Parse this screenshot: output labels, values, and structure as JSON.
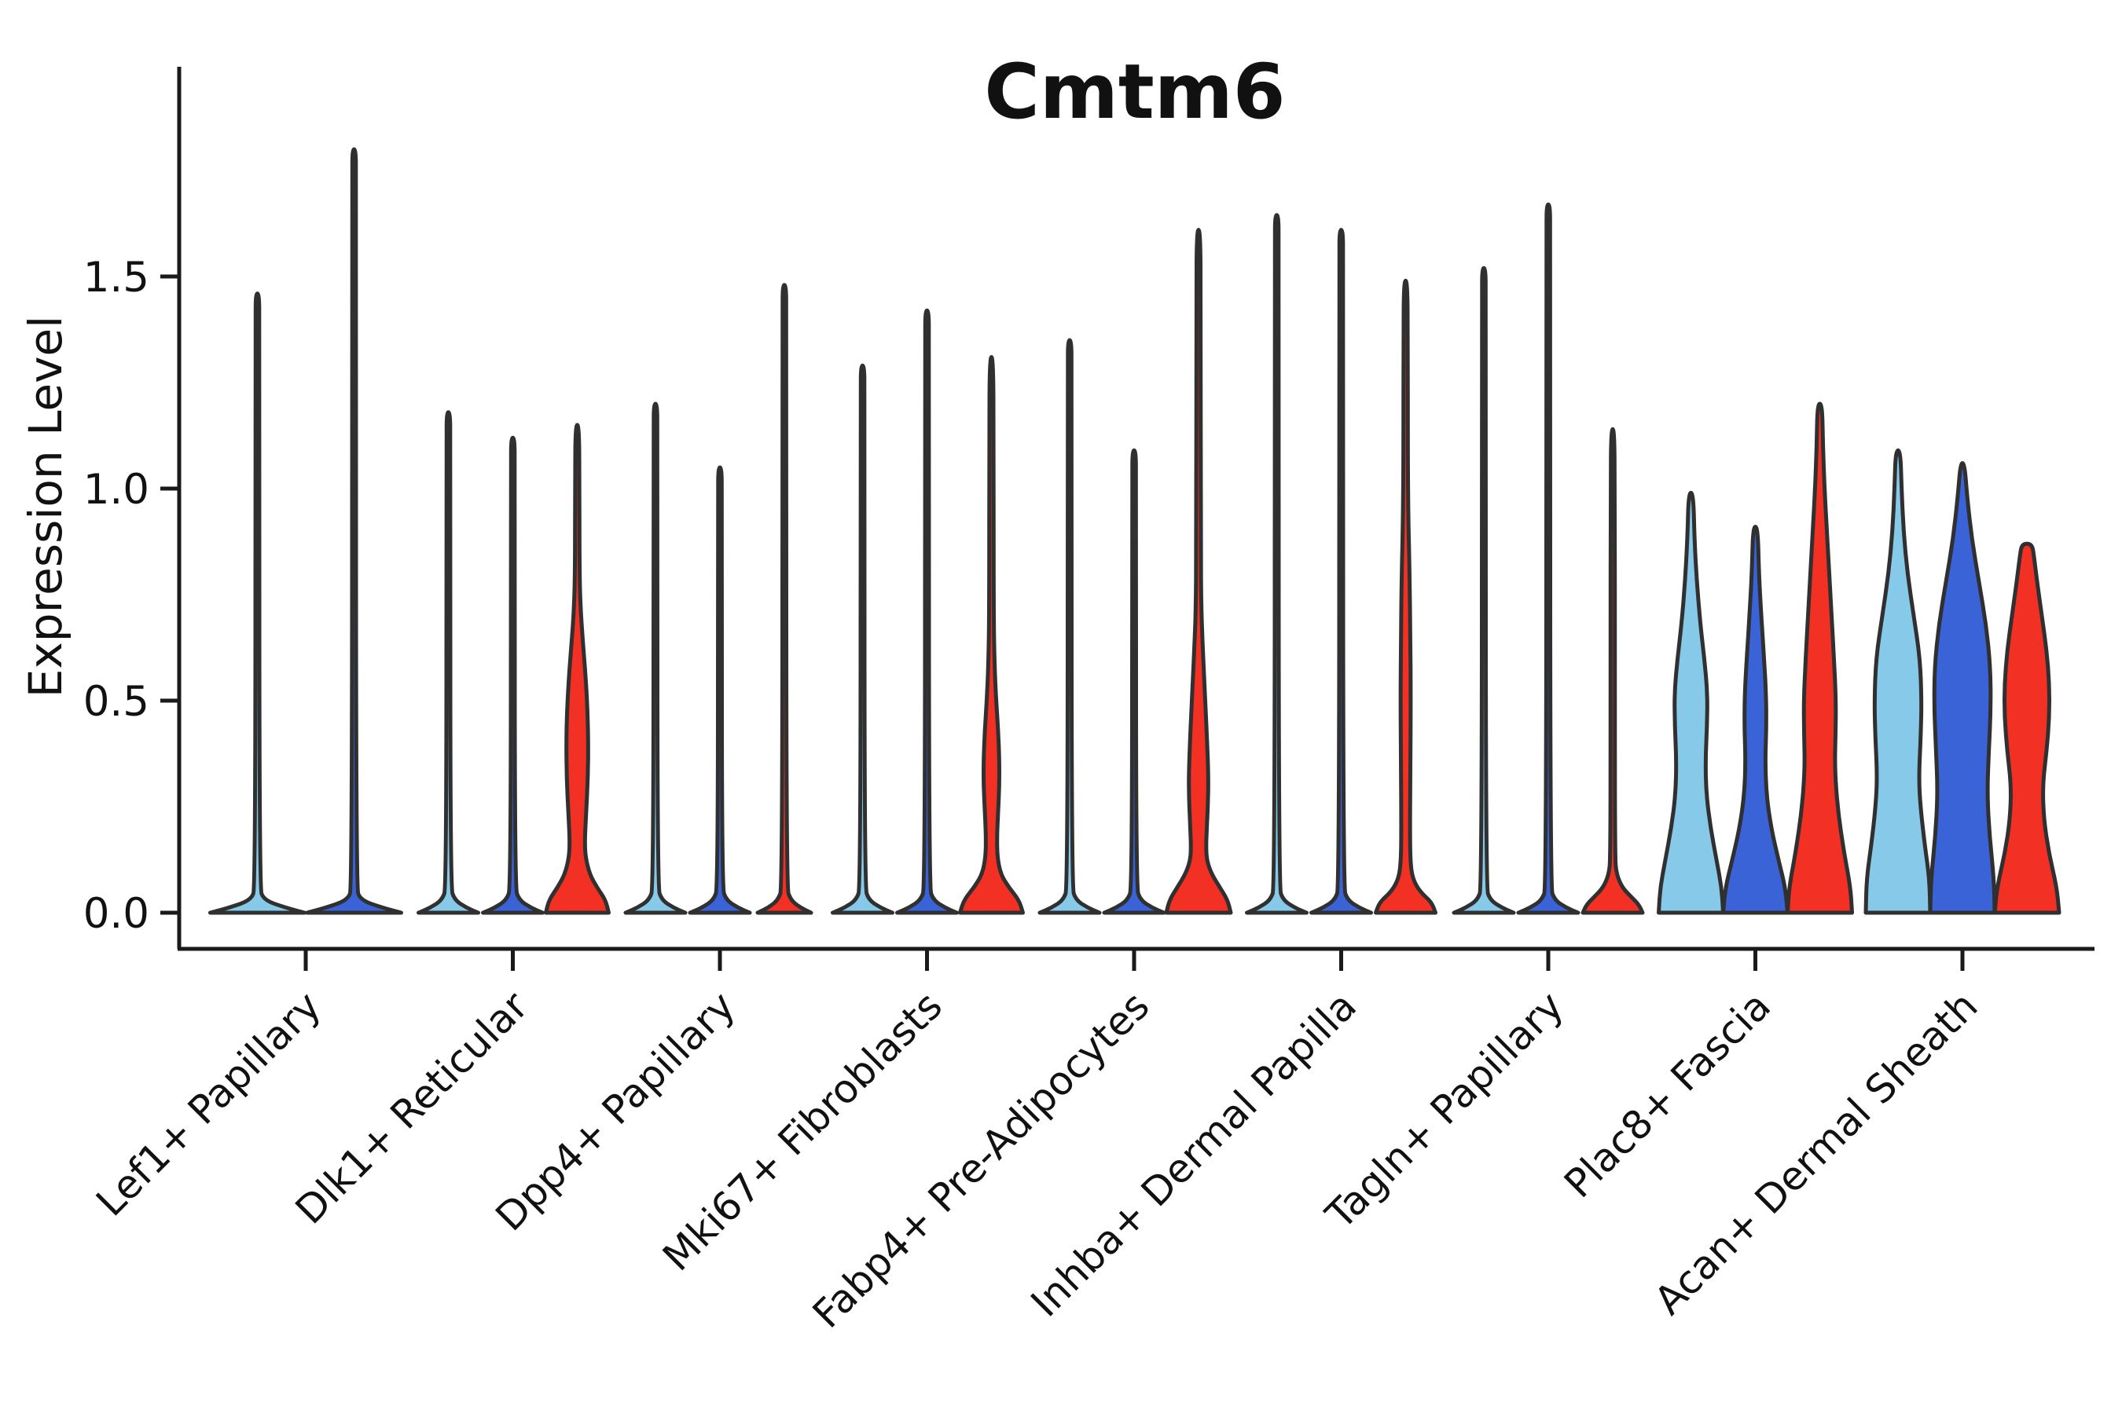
{
  "chart_data": {
    "type": "violin",
    "title": "Cmtm6",
    "ylabel": "Expression Level",
    "xlabel": "",
    "grid": false,
    "legend": "none",
    "yticks": [
      "0.0",
      "0.5",
      "1.0",
      "1.5"
    ],
    "ytick_values": [
      0.0,
      0.5,
      1.0,
      1.5
    ],
    "ylim": [
      -0.085,
      1.995
    ],
    "categories": [
      "Lef1+ Papillary",
      "Dlk1+ Reticular",
      "Dpp4+ Papillary",
      "Mki67+ Fibroblasts",
      "Fabp4+ Pre-Adipocytes",
      "Inhba+ Dermal Papilla",
      "Tagln+ Papillary",
      "Plac8+ Fascia",
      "Acan+ Dermal Sheath"
    ],
    "palette": {
      "lightblue": "#87c9e8",
      "darkblue": "#3a63d8",
      "red": "#f23023",
      "outline": "#303030",
      "axis": "#1a1a1a"
    },
    "groups": [
      {
        "label": "Lef1+ Papillary",
        "violins": [
          {
            "color": "lightblue",
            "offset": -61.5,
            "top": 1.46,
            "shape": "spike",
            "base_halfwidth": 60
          },
          {
            "color": "darkblue",
            "offset": 61.5,
            "top": 1.8,
            "shape": "spike",
            "base_halfwidth": 60
          }
        ]
      },
      {
        "label": "Dlk1+ Reticular",
        "violins": [
          {
            "color": "lightblue",
            "offset": -82,
            "top": 1.18,
            "shape": "spike",
            "base_halfwidth": 38
          },
          {
            "color": "darkblue",
            "offset": 0,
            "top": 1.12,
            "shape": "spike",
            "base_halfwidth": 38
          },
          {
            "color": "red",
            "offset": 82,
            "top": 1.15,
            "shape": "profile",
            "profile": [
              [
                0,
                40
              ],
              [
                0.03,
                36
              ],
              [
                0.06,
                25
              ],
              [
                0.09,
                16
              ],
              [
                0.13,
                10.5
              ],
              [
                0.17,
                9.5
              ],
              [
                0.24,
                11.5
              ],
              [
                0.32,
                13.5
              ],
              [
                0.4,
                14
              ],
              [
                0.48,
                13
              ],
              [
                0.56,
                10.5
              ],
              [
                0.63,
                7.5
              ],
              [
                0.72,
                4
              ],
              [
                0.82,
                2.8
              ],
              [
                1.02,
                2.8
              ],
              [
                1.15,
                2.2
              ]
            ]
          }
        ]
      },
      {
        "label": "Dpp4+ Papillary",
        "violins": [
          {
            "color": "lightblue",
            "offset": -82,
            "top": 1.2,
            "shape": "spike",
            "base_halfwidth": 38
          },
          {
            "color": "darkblue",
            "offset": 0,
            "top": 1.05,
            "shape": "spike",
            "base_halfwidth": 38
          },
          {
            "color": "red",
            "offset": 82,
            "top": 1.48,
            "shape": "spike",
            "base_halfwidth": 34
          }
        ]
      },
      {
        "label": "Mki67+ Fibroblasts",
        "violins": [
          {
            "color": "lightblue",
            "offset": -82,
            "top": 1.29,
            "shape": "spike",
            "base_halfwidth": 38
          },
          {
            "color": "darkblue",
            "offset": 0,
            "top": 1.42,
            "shape": "spike",
            "base_halfwidth": 38
          },
          {
            "color": "red",
            "offset": 82,
            "top": 1.31,
            "shape": "profile",
            "profile": [
              [
                0,
                40
              ],
              [
                0.03,
                35
              ],
              [
                0.06,
                22
              ],
              [
                0.09,
                12
              ],
              [
                0.13,
                7.5
              ],
              [
                0.18,
                7
              ],
              [
                0.24,
                8.5
              ],
              [
                0.3,
                10
              ],
              [
                0.36,
                10
              ],
              [
                0.43,
                8.5
              ],
              [
                0.5,
                6
              ],
              [
                0.58,
                4
              ],
              [
                0.7,
                2.8
              ],
              [
                1.12,
                2.8
              ],
              [
                1.31,
                2.2
              ]
            ]
          }
        ]
      },
      {
        "label": "Fabp4+ Pre-Adipocytes",
        "violins": [
          {
            "color": "lightblue",
            "offset": -82,
            "top": 1.35,
            "shape": "spike",
            "base_halfwidth": 38
          },
          {
            "color": "darkblue",
            "offset": 0,
            "top": 1.09,
            "shape": "spike",
            "base_halfwidth": 38
          },
          {
            "color": "red",
            "offset": 82,
            "top": 1.61,
            "shape": "profile",
            "profile": [
              [
                0,
                41
              ],
              [
                0.03,
                37
              ],
              [
                0.06,
                27
              ],
              [
                0.09,
                17
              ],
              [
                0.12,
                11
              ],
              [
                0.15,
                9.5
              ],
              [
                0.2,
                10.5
              ],
              [
                0.26,
                12
              ],
              [
                0.32,
                12.5
              ],
              [
                0.4,
                11
              ],
              [
                0.48,
                9
              ],
              [
                0.56,
                7
              ],
              [
                0.64,
                5
              ],
              [
                0.72,
                3.5
              ],
              [
                0.85,
                2.8
              ],
              [
                1.45,
                2.8
              ],
              [
                1.61,
                2.2
              ]
            ]
          }
        ]
      },
      {
        "label": "Inhba+ Dermal Papilla",
        "violins": [
          {
            "color": "lightblue",
            "offset": -82,
            "top": 1.645,
            "shape": "spike",
            "base_halfwidth": 38
          },
          {
            "color": "darkblue",
            "offset": 0,
            "top": 1.61,
            "shape": "spike",
            "base_halfwidth": 38
          },
          {
            "color": "red",
            "offset": 82,
            "top": 1.49,
            "shape": "profile",
            "profile": [
              [
                0,
                38
              ],
              [
                0.025,
                33
              ],
              [
                0.05,
                18
              ],
              [
                0.08,
                9
              ],
              [
                0.12,
                6
              ],
              [
                0.2,
                5.5
              ],
              [
                0.35,
                6
              ],
              [
                0.5,
                6.5
              ],
              [
                0.65,
                6
              ],
              [
                0.8,
                5
              ],
              [
                0.92,
                3.5
              ],
              [
                1.05,
                2.8
              ],
              [
                1.35,
                2.8
              ],
              [
                1.49,
                2.2
              ]
            ]
          }
        ]
      },
      {
        "label": "Tagln+ Papillary",
        "violins": [
          {
            "color": "lightblue",
            "offset": -82,
            "top": 1.52,
            "shape": "spike",
            "base_halfwidth": 38
          },
          {
            "color": "darkblue",
            "offset": 0,
            "top": 1.67,
            "shape": "spike",
            "base_halfwidth": 38
          },
          {
            "color": "red",
            "offset": 82,
            "top": 1.14,
            "shape": "profile",
            "profile": [
              [
                0,
                38
              ],
              [
                0.02,
                33
              ],
              [
                0.04,
                22
              ],
              [
                0.06,
                12
              ],
              [
                0.09,
                5
              ],
              [
                0.13,
                2.8
              ],
              [
                0.6,
                2.8
              ],
              [
                1.0,
                2.6
              ],
              [
                1.14,
                2
              ]
            ]
          }
        ]
      },
      {
        "label": "Plac8+ Fascia",
        "violins": [
          {
            "color": "lightblue",
            "offset": -82,
            "top": 0.99,
            "shape": "profile",
            "profile": [
              [
                0,
                41
              ],
              [
                0.06,
                39
              ],
              [
                0.12,
                33
              ],
              [
                0.2,
                25
              ],
              [
                0.28,
                19.5
              ],
              [
                0.36,
                18.5
              ],
              [
                0.44,
                20.5
              ],
              [
                0.52,
                21
              ],
              [
                0.6,
                17
              ],
              [
                0.68,
                12
              ],
              [
                0.78,
                7.5
              ],
              [
                0.88,
                4.5
              ],
              [
                0.99,
                3
              ]
            ]
          },
          {
            "color": "darkblue",
            "offset": 0,
            "top": 0.91,
            "shape": "profile",
            "profile": [
              [
                0,
                41
              ],
              [
                0.06,
                38
              ],
              [
                0.12,
                30
              ],
              [
                0.2,
                20
              ],
              [
                0.28,
                14
              ],
              [
                0.36,
                12.5
              ],
              [
                0.44,
                14
              ],
              [
                0.52,
                13.5
              ],
              [
                0.6,
                11
              ],
              [
                0.7,
                7.5
              ],
              [
                0.8,
                4.5
              ],
              [
                0.91,
                3
              ]
            ]
          },
          {
            "color": "red",
            "offset": 82,
            "top": 1.2,
            "shape": "profile",
            "profile": [
              [
                0,
                41
              ],
              [
                0.06,
                39
              ],
              [
                0.14,
                31
              ],
              [
                0.24,
                23
              ],
              [
                0.34,
                19
              ],
              [
                0.42,
                20
              ],
              [
                0.5,
                20.5
              ],
              [
                0.6,
                18
              ],
              [
                0.7,
                15
              ],
              [
                0.8,
                12
              ],
              [
                0.9,
                9
              ],
              [
                1.0,
                6
              ],
              [
                1.1,
                4
              ],
              [
                1.2,
                3
              ]
            ]
          }
        ]
      },
      {
        "label": "Acan+ Dermal Sheath",
        "violins": [
          {
            "color": "lightblue",
            "offset": -82,
            "top": 1.09,
            "shape": "profile",
            "profile": [
              [
                0,
                41
              ],
              [
                0.08,
                40
              ],
              [
                0.16,
                34
              ],
              [
                0.25,
                28.5
              ],
              [
                0.32,
                26.5
              ],
              [
                0.42,
                29
              ],
              [
                0.5,
                30
              ],
              [
                0.6,
                28
              ],
              [
                0.7,
                20
              ],
              [
                0.8,
                12
              ],
              [
                0.9,
                7
              ],
              [
                1.0,
                4.5
              ],
              [
                1.09,
                3
              ]
            ]
          },
          {
            "color": "darkblue",
            "offset": 0,
            "top": 1.06,
            "shape": "profile",
            "profile": [
              [
                0,
                41
              ],
              [
                0.08,
                40
              ],
              [
                0.18,
                34.5
              ],
              [
                0.28,
                31.5
              ],
              [
                0.38,
                33.5
              ],
              [
                0.48,
                36
              ],
              [
                0.58,
                35.5
              ],
              [
                0.68,
                30
              ],
              [
                0.78,
                21
              ],
              [
                0.88,
                12
              ],
              [
                0.98,
                6
              ],
              [
                1.06,
                2.5
              ]
            ]
          },
          {
            "color": "red",
            "offset": 82,
            "top": 0.87,
            "shape": "profile",
            "profile": [
              [
                0,
                41
              ],
              [
                0.06,
                38
              ],
              [
                0.14,
                28
              ],
              [
                0.22,
                21.5
              ],
              [
                0.3,
                20
              ],
              [
                0.38,
                25
              ],
              [
                0.46,
                28.5
              ],
              [
                0.54,
                28.5
              ],
              [
                0.62,
                25
              ],
              [
                0.7,
                19
              ],
              [
                0.78,
                13
              ],
              [
                0.84,
                9
              ],
              [
                0.87,
                6.5
              ]
            ]
          }
        ]
      }
    ]
  }
}
